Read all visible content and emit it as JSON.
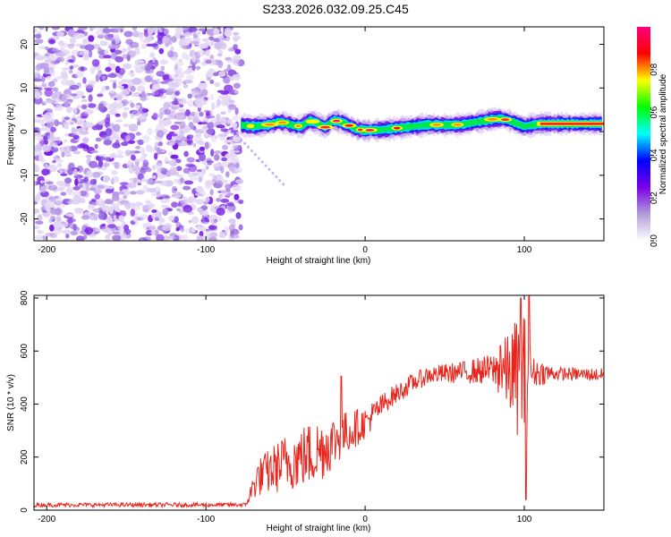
{
  "chart_data": [
    {
      "type": "heatmap",
      "title": "S233.2026.032.09.25.C45",
      "xlabel": "Height of straight line (km)",
      "ylabel": "Frequency (Hz)",
      "xlim": [
        -208,
        150
      ],
      "ylim": [
        -25,
        24
      ],
      "xticks": [
        -200,
        -100,
        0,
        100
      ],
      "yticks": [
        -20,
        -10,
        0,
        10,
        20
      ],
      "noise_region_x": [
        -208,
        -78
      ],
      "band_region_x": [
        -78,
        150
      ],
      "band_center_freq": [
        [
          -78,
          1.5
        ],
        [
          -70,
          1.2
        ],
        [
          -60,
          1.6
        ],
        [
          -55,
          2.2
        ],
        [
          -50,
          2.0
        ],
        [
          -45,
          1.4
        ],
        [
          -40,
          1.2
        ],
        [
          -35,
          2.5
        ],
        [
          -30,
          2.0
        ],
        [
          -25,
          1.0
        ],
        [
          -20,
          2.6
        ],
        [
          -15,
          2.2
        ],
        [
          -10,
          1.4
        ],
        [
          -5,
          0.5
        ],
        [
          0,
          0.3
        ],
        [
          10,
          0.4
        ],
        [
          20,
          0.8
        ],
        [
          30,
          1.2
        ],
        [
          40,
          1.6
        ],
        [
          50,
          1.5
        ],
        [
          60,
          1.6
        ],
        [
          70,
          2.2
        ],
        [
          80,
          2.8
        ],
        [
          85,
          3.0
        ],
        [
          90,
          2.6
        ],
        [
          100,
          1.2
        ],
        [
          110,
          1.8
        ],
        [
          120,
          1.8
        ],
        [
          130,
          1.8
        ],
        [
          140,
          1.8
        ],
        [
          150,
          1.8
        ]
      ],
      "colorbar": {
        "label": "Normalized spectral amplitude",
        "min": 0.0,
        "max": 1.0,
        "ticks": [
          "0.0",
          "0.2",
          "0.4",
          "0.6",
          "0.8"
        ],
        "colormap": [
          "#ffffff",
          "#b19cd9",
          "#7a00e6",
          "#0000ff",
          "#00ffff",
          "#00ff00",
          "#ffff00",
          "#ff0000",
          "#ff007f"
        ]
      }
    },
    {
      "type": "line",
      "xlabel": "Height of straight line (km)",
      "ylabel": "SNR (10 * v/v)",
      "xlim": [
        -208,
        150
      ],
      "ylim": [
        0,
        810
      ],
      "xticks": [
        -200,
        -100,
        0,
        100
      ],
      "yticks": [
        0,
        200,
        400,
        600,
        800
      ],
      "line_color": "#e8251c",
      "series": [
        {
          "name": "SNR",
          "envelope": [
            {
              "x": -208,
              "y": 20,
              "noise": 8
            },
            {
              "x": -75,
              "y": 20,
              "noise": 8
            },
            {
              "x": -68,
              "y": 120,
              "noise": 70
            },
            {
              "x": -50,
              "y": 180,
              "noise": 110
            },
            {
              "x": -30,
              "y": 220,
              "noise": 130
            },
            {
              "x": -15,
              "y": 280,
              "noise": 90
            },
            {
              "x": 0,
              "y": 330,
              "noise": 60
            },
            {
              "x": 15,
              "y": 420,
              "noise": 40
            },
            {
              "x": 30,
              "y": 480,
              "noise": 35
            },
            {
              "x": 40,
              "y": 510,
              "noise": 35
            },
            {
              "x": 60,
              "y": 520,
              "noise": 40
            },
            {
              "x": 80,
              "y": 530,
              "noise": 60
            },
            {
              "x": 90,
              "y": 520,
              "noise": 150
            },
            {
              "x": 100,
              "y": 500,
              "noise": 290
            },
            {
              "x": 105,
              "y": 520,
              "noise": 60
            },
            {
              "x": 120,
              "y": 515,
              "noise": 25
            },
            {
              "x": 150,
              "y": 510,
              "noise": 25
            }
          ],
          "peaks": [
            {
              "x": -15,
              "y": 505
            },
            {
              "x": 85,
              "y": 620
            },
            {
              "x": 98,
              "y": 800
            },
            {
              "x": 101,
              "y": 40
            },
            {
              "x": 103,
              "y": 820
            }
          ]
        }
      ]
    }
  ]
}
